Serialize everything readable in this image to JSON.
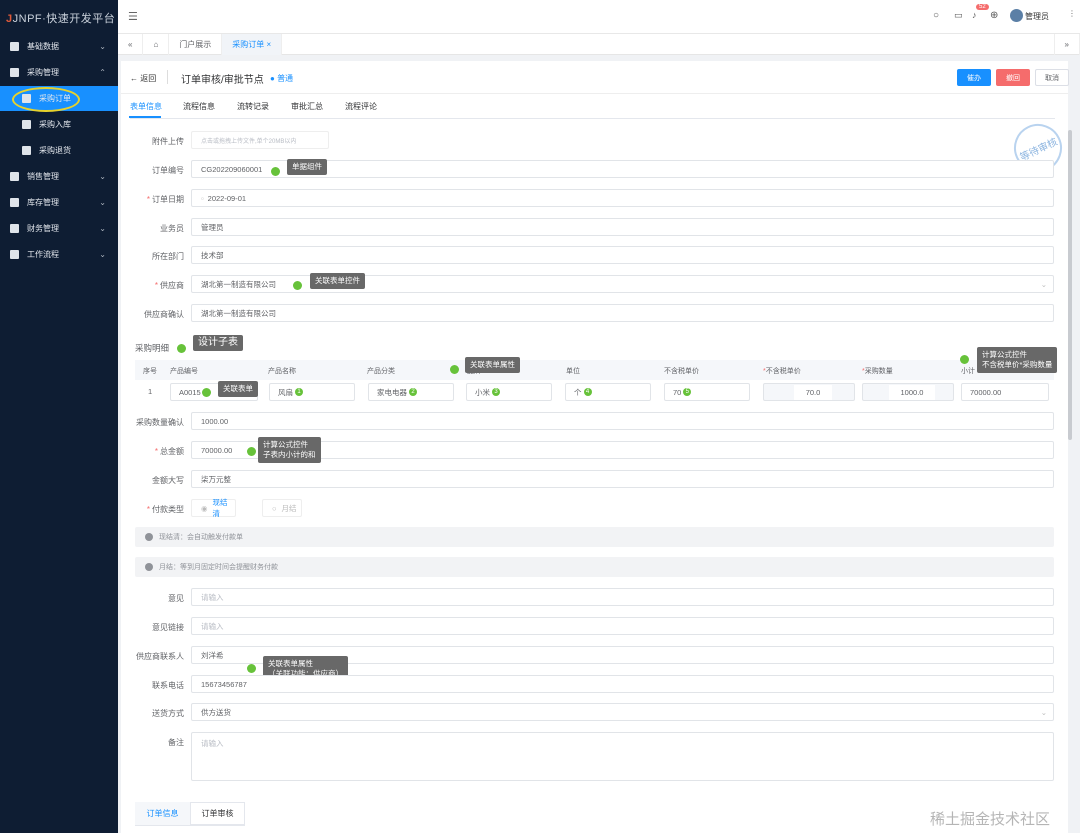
{
  "app": {
    "logo": "JNPF·快速开发平台"
  },
  "sidebar": {
    "items": [
      {
        "label": "基础数据",
        "icon": "document-icon"
      },
      {
        "label": "采购管理",
        "icon": "truck-icon"
      },
      {
        "label": "采购订单",
        "icon": "order-icon",
        "active": true
      },
      {
        "label": "采购入库",
        "icon": "home-icon"
      },
      {
        "label": "采购退货",
        "icon": "database-icon"
      },
      {
        "label": "销售管理",
        "icon": "users-icon"
      },
      {
        "label": "库存管理",
        "icon": "box-icon"
      },
      {
        "label": "财务管理",
        "icon": "finance-icon"
      },
      {
        "label": "工作流程",
        "icon": "flow-icon"
      }
    ]
  },
  "header": {
    "badge": "52",
    "user": "管理员"
  },
  "tabs": {
    "items": [
      "门户展示",
      "采购订单"
    ]
  },
  "page": {
    "back": "返回",
    "title": "订单审核/审批节点",
    "level": "普通",
    "btn_handle": "催办",
    "btn_revoke": "撤回",
    "btn_cancel": "取消",
    "stamp": "等待审核"
  },
  "form_tabs": [
    "表单信息",
    "流程信息",
    "流转记录",
    "审批汇总",
    "流程评论"
  ],
  "fields": {
    "upload": {
      "label": "附件上传",
      "placeholder": "点击或拖拽上传文件,单个20MB以内"
    },
    "order_no": {
      "label": "订单编号",
      "value": "CG202209060001"
    },
    "order_date": {
      "label": "订单日期",
      "value": "2022-09-01"
    },
    "salesman": {
      "label": "业务员",
      "value": "管理员"
    },
    "dept": {
      "label": "所在部门",
      "value": "技术部"
    },
    "supplier": {
      "label": "供应商",
      "value": "湖北第一制造有限公司"
    },
    "supplier_confirm": {
      "label": "供应商确认",
      "value": "湖北第一制造有限公司"
    },
    "qty_confirm": {
      "label": "采购数量确认",
      "value": "1000.00"
    },
    "total": {
      "label": "总金额",
      "value": "70000.00"
    },
    "amount_words": {
      "label": "金额大写",
      "value": "柒万元整"
    },
    "pay_type": {
      "label": "付款类型",
      "options": [
        "现结清",
        "月结"
      ],
      "selected": "现结清"
    },
    "note1": "现结清：会自动触发付款单",
    "note2": "月结：等到月固定时间会提醒财务付款",
    "opinion": {
      "label": "意见",
      "placeholder": "请输入"
    },
    "opinion_link": {
      "label": "意见链接",
      "placeholder": "请输入"
    },
    "contact": {
      "label": "供应商联系人",
      "value": "刘洋希"
    },
    "phone": {
      "label": "联系电话",
      "value": "15673456787"
    },
    "delivery": {
      "label": "送货方式",
      "value": "供方送货"
    },
    "remark": {
      "label": "备注",
      "placeholder": "请输入"
    }
  },
  "subtable": {
    "title": "采购明细",
    "headers": [
      "序号",
      "产品编号",
      "产品名称",
      "产品分类",
      "品牌",
      "单位",
      "不含税单价",
      "不含税单价",
      "采购数量",
      "小计"
    ],
    "row": {
      "index": "1",
      "code": "A0015",
      "name": "风扇",
      "category": "家电电器",
      "brand": "小米",
      "unit": "个",
      "price": "70",
      "price2": "70.0",
      "qty": "1000.0",
      "subtotal": "70000.00"
    }
  },
  "annotations": {
    "order_no": "单据组件",
    "supplier": "关联表单控件",
    "subtable": "设计子表",
    "code": "关联表单",
    "brand": "关联表单属性",
    "subtotal_1": "计算公式控件",
    "subtotal_2": "不含税单价*采购数量",
    "total_1": "计算公式控件",
    "total_2": "子表内小计的和",
    "contact_1": "关联表单属性",
    "contact_2": "（关联功能：供应商）"
  },
  "bottom_tabs": [
    "订单信息",
    "订单审核"
  ],
  "watermark": "稀土掘金技术社区"
}
